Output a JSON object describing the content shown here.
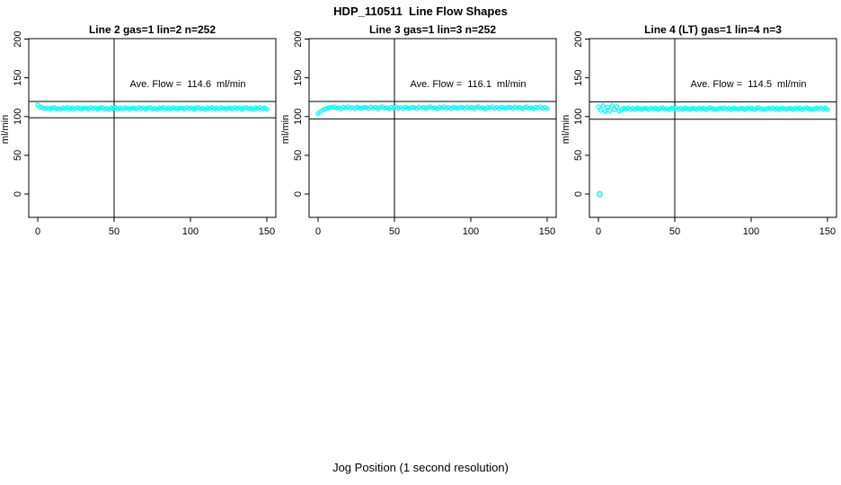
{
  "figure": {
    "title": "HDP_110511  Line Flow Shapes",
    "xlabel": "Jog Position (1 second resolution)",
    "background": "#ffffff",
    "point_color": "#00ffff",
    "axis_color": "#000000"
  },
  "chart_data": [
    {
      "type": "scatter",
      "title": "Line 2 gas=1 lin=2 n=252",
      "annotation": "Ave. Flow =  114.6  ml/min",
      "ave_flow": 114.6,
      "n": 252,
      "ylabel": "ml/min",
      "x_ticks": [
        0,
        50,
        100,
        150
      ],
      "y_ticks": [
        0,
        50,
        100,
        150,
        200
      ],
      "xlim": [
        -5.9,
        155.9
      ],
      "ylim": [
        -30.1,
        200.6
      ],
      "grid": false,
      "vline_x": 50,
      "hlines": [
        119.5,
        98.5
      ],
      "x0": 0,
      "dx": 1.5,
      "y": [
        115.0,
        112.4,
        111.6,
        110.4,
        111.3,
        109.5,
        111.0,
        111.8,
        110.1,
        110.6,
        109.4,
        111.4,
        110.3,
        111.7,
        109.9,
        111.1,
        109.6,
        111.5,
        110.7,
        110.0,
        111.2,
        110.9,
        109.8,
        111.6,
        110.4,
        111.3,
        109.5,
        111.0,
        111.8,
        110.1,
        110.6,
        109.4,
        111.4,
        110.3,
        111.7,
        109.9,
        111.1,
        109.6,
        111.5,
        110.7,
        110.0,
        111.2,
        110.9,
        109.8,
        111.6,
        110.4,
        111.3,
        109.5,
        111.0,
        111.8,
        110.1,
        110.6,
        109.4,
        111.4,
        110.3,
        111.7,
        109.9,
        111.1,
        109.6,
        111.5,
        110.7,
        110.0,
        111.2,
        110.9,
        109.8,
        111.6,
        110.4,
        111.3,
        109.5,
        111.0,
        111.8,
        110.1,
        110.6,
        109.4,
        111.4,
        110.3,
        111.7,
        109.9,
        111.1,
        109.6,
        111.5,
        110.7,
        110.0,
        111.2,
        110.9,
        109.8,
        111.6,
        110.4,
        111.3,
        109.5,
        111.0,
        111.8,
        110.1,
        110.6,
        109.4,
        111.4,
        110.3,
        111.7,
        109.9,
        111.1,
        109.6
      ],
      "outliers": []
    },
    {
      "type": "scatter",
      "title": "Line 3 gas=1 lin=3 n=252",
      "annotation": "Ave. Flow =  116.1  ml/min",
      "ave_flow": 116.1,
      "n": 252,
      "ylabel": "ml/min",
      "x_ticks": [
        0,
        50,
        100,
        150
      ],
      "y_ticks": [
        0,
        50,
        100,
        150,
        200
      ],
      "xlim": [
        -5.9,
        155.9
      ],
      "ylim": [
        -30.1,
        200.6
      ],
      "grid": false,
      "vline_x": 50,
      "hlines": [
        119.5,
        97.0
      ],
      "x0": 0,
      "dx": 1.5,
      "y": [
        104.0,
        106.2,
        108.3,
        109.9,
        110.9,
        111.6,
        111.8,
        112.6,
        110.9,
        111.4,
        110.2,
        112.2,
        111.1,
        112.5,
        110.7,
        111.9,
        110.4,
        112.3,
        111.5,
        110.8,
        112.0,
        111.7,
        110.6,
        112.4,
        111.2,
        112.1,
        110.3,
        111.8,
        112.6,
        110.9,
        111.4,
        110.2,
        112.2,
        111.1,
        112.5,
        110.7,
        111.9,
        110.4,
        112.3,
        111.5,
        110.8,
        112.0,
        111.7,
        110.6,
        112.4,
        111.2,
        112.1,
        110.3,
        111.8,
        112.6,
        110.9,
        111.4,
        110.2,
        112.2,
        111.1,
        112.5,
        110.7,
        111.9,
        110.4,
        112.3,
        111.5,
        110.8,
        112.0,
        111.7,
        110.6,
        112.4,
        111.2,
        112.1,
        110.3,
        111.8,
        112.6,
        110.9,
        111.4,
        110.2,
        112.2,
        111.1,
        112.5,
        110.7,
        111.9,
        110.4,
        112.3,
        111.5,
        110.8,
        112.0,
        111.7,
        110.6,
        112.4,
        111.2,
        112.1,
        110.3,
        111.8,
        112.6,
        110.9,
        111.4,
        110.2,
        112.2,
        111.1,
        112.5,
        110.7,
        111.9,
        110.4
      ],
      "outliers": []
    },
    {
      "type": "scatter",
      "title": "Line 4 (LT) gas=1 lin=4 n=3",
      "annotation": "Ave. Flow =  114.5  ml/min",
      "ave_flow": 114.5,
      "n": 3,
      "ylabel": "ml/min",
      "x_ticks": [
        0,
        50,
        100,
        150
      ],
      "y_ticks": [
        0,
        50,
        100,
        150,
        200
      ],
      "xlim": [
        -5.9,
        155.9
      ],
      "ylim": [
        -30.1,
        200.6
      ],
      "grid": false,
      "vline_x": 50,
      "hlines": [
        119.0,
        96.5
      ],
      "x0": 0,
      "dx": 1.5,
      "y": [
        112.8,
        108.0,
        113.9,
        106.9,
        112.2,
        107.5,
        114.1,
        108.8,
        112.9,
        107.2,
        109.0,
        111.0,
        109.9,
        111.3,
        109.5,
        110.7,
        109.2,
        111.1,
        110.3,
        109.6,
        110.8,
        110.5,
        109.4,
        111.2,
        110.0,
        110.9,
        109.1,
        110.6,
        111.4,
        109.7,
        110.2,
        109.0,
        111.0,
        109.9,
        111.3,
        109.5,
        110.7,
        109.2,
        111.1,
        110.3,
        109.6,
        110.8,
        110.5,
        109.4,
        111.2,
        110.0,
        110.9,
        109.1,
        110.6,
        111.4,
        109.7,
        110.2,
        109.0,
        111.0,
        109.9,
        111.3,
        109.5,
        110.7,
        109.2,
        111.1,
        110.3,
        109.6,
        110.8,
        110.5,
        109.4,
        111.2,
        110.0,
        110.9,
        109.1,
        110.6,
        111.4,
        109.7,
        110.2,
        109.0,
        111.0,
        109.9,
        111.3,
        109.5,
        110.7,
        109.2,
        111.1,
        110.3,
        109.6,
        110.8,
        110.5,
        109.4,
        111.2,
        110.0,
        110.9,
        109.1,
        110.6,
        111.4,
        109.7,
        110.2,
        109.0,
        111.0,
        109.9,
        111.3,
        109.5,
        110.7,
        109.2
      ],
      "outliers": [
        [
          0.8,
          0
        ]
      ]
    }
  ]
}
